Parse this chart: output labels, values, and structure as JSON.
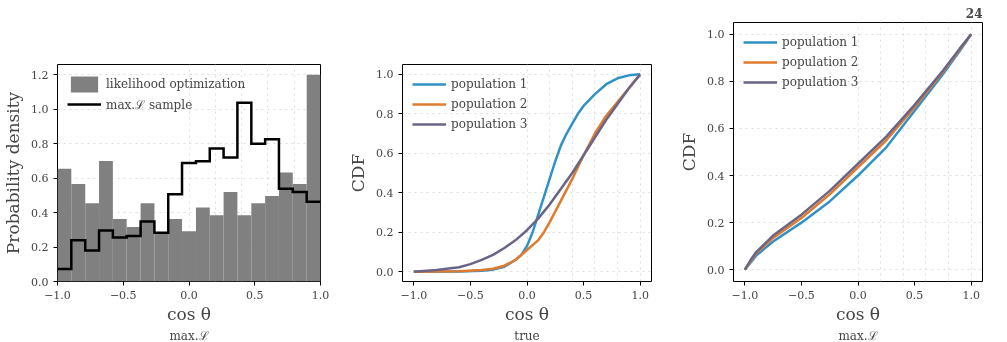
{
  "chart_data": [
    {
      "type": "histogram",
      "xlabel": "cos θ$_{max.ℒ}$",
      "ylabel": "Probability density",
      "bins": [
        -1.0,
        -0.895,
        -0.789,
        -0.684,
        -0.579,
        -0.474,
        -0.368,
        -0.263,
        -0.158,
        -0.053,
        0.053,
        0.158,
        0.263,
        0.368,
        0.474,
        0.579,
        0.684,
        0.789,
        0.895,
        1.0
      ],
      "series": [
        {
          "type": "histogram",
          "name": "likelihood optimization",
          "color": "#808080",
          "values": [
            0.655,
            0.566,
            0.454,
            0.7,
            0.363,
            0.316,
            0.454,
            0.277,
            0.363,
            0.292,
            0.43,
            0.385,
            0.52,
            0.385,
            0.454,
            0.497,
            0.633,
            0.566,
            1.2
          ]
        },
        {
          "type": "step",
          "name": "max.ℒ sample",
          "color": "#000000",
          "x": [
            -1.0,
            -0.895,
            -0.789,
            -0.684,
            -0.579,
            -0.474,
            -0.368,
            -0.263,
            -0.158,
            -0.053,
            0.053,
            0.158,
            0.263,
            0.368,
            0.474,
            0.579,
            0.684,
            0.789,
            0.895,
            1.0
          ],
          "values": [
            0.073,
            0.24,
            0.18,
            0.296,
            0.255,
            0.264,
            0.348,
            0.283,
            0.506,
            0.688,
            0.698,
            0.772,
            0.72,
            1.038,
            0.8,
            0.826,
            0.538,
            0.519,
            0.463,
            0.463
          ]
        }
      ],
      "xlim": [
        -1,
        1
      ],
      "xticks": [
        {
          "value": -1,
          "label": "−1.0"
        },
        {
          "value": -0.5,
          "label": "−0.5"
        },
        {
          "value": 0,
          "label": "0.0"
        },
        {
          "value": 0.5,
          "label": "0.5"
        },
        {
          "value": 1,
          "label": "1.0"
        }
      ],
      "ylim": [
        0,
        1.26
      ],
      "yticks": [
        {
          "value": 0,
          "label": "0.0"
        },
        {
          "value": 0.2,
          "label": "0.2"
        },
        {
          "value": 0.4,
          "label": "0.4"
        },
        {
          "value": 0.6,
          "label": "0.6"
        },
        {
          "value": 0.8,
          "label": "0.8"
        },
        {
          "value": 1,
          "label": "1.0"
        },
        {
          "value": 1.2,
          "label": "1.2"
        }
      ],
      "grid": true,
      "legend": "top left"
    },
    {
      "type": "line",
      "xlabel": "cos θ$_{true}$",
      "ylabel": "CDF",
      "series": [
        {
          "name": "population 1",
          "color": "#3091c9",
          "x": [
            -1,
            -0.6,
            -0.4,
            -0.3,
            -0.2,
            -0.1,
            -0.05,
            0,
            0.05,
            0.1,
            0.15,
            0.2,
            0.25,
            0.3,
            0.35,
            0.4,
            0.45,
            0.5,
            0.6,
            0.7,
            0.8,
            0.9,
            1
          ],
          "values": [
            0,
            0.001,
            0.004,
            0.01,
            0.025,
            0.06,
            0.085,
            0.13,
            0.2,
            0.29,
            0.38,
            0.47,
            0.56,
            0.64,
            0.7,
            0.75,
            0.8,
            0.84,
            0.9,
            0.95,
            0.98,
            0.995,
            1
          ]
        },
        {
          "name": "population 2",
          "color": "#e07b2e",
          "x": [
            -1,
            -0.6,
            -0.4,
            -0.3,
            -0.2,
            -0.1,
            0,
            0.1,
            0.15,
            0.2,
            0.3,
            0.4,
            0.5,
            0.6,
            0.7,
            0.8,
            0.9,
            1
          ],
          "values": [
            0,
            0.002,
            0.008,
            0.015,
            0.03,
            0.06,
            0.11,
            0.16,
            0.2,
            0.25,
            0.36,
            0.47,
            0.59,
            0.7,
            0.79,
            0.86,
            0.93,
            1
          ]
        },
        {
          "name": "population 3",
          "color": "#6a6486",
          "x": [
            -1,
            -0.8,
            -0.6,
            -0.5,
            -0.4,
            -0.3,
            -0.2,
            -0.1,
            0,
            0.1,
            0.2,
            0.3,
            0.4,
            0.5,
            0.6,
            0.7,
            0.8,
            0.9,
            1
          ],
          "values": [
            0,
            0.008,
            0.022,
            0.038,
            0.06,
            0.085,
            0.12,
            0.16,
            0.21,
            0.27,
            0.34,
            0.42,
            0.5,
            0.59,
            0.68,
            0.77,
            0.85,
            0.93,
            1
          ]
        }
      ],
      "xlim": [
        -1.1,
        1.1
      ],
      "xticks": [
        {
          "value": -1,
          "label": "−1.0"
        },
        {
          "value": -0.5,
          "label": "−0.5"
        },
        {
          "value": 0,
          "label": "0.0"
        },
        {
          "value": 0.5,
          "label": "0.5"
        },
        {
          "value": 1,
          "label": "1.0"
        }
      ],
      "ylim": [
        -0.05,
        1.05
      ],
      "yticks": [
        {
          "value": 0,
          "label": "0.0"
        },
        {
          "value": 0.2,
          "label": "0.2"
        },
        {
          "value": 0.4,
          "label": "0.4"
        },
        {
          "value": 0.6,
          "label": "0.6"
        },
        {
          "value": 0.8,
          "label": "0.8"
        },
        {
          "value": 1,
          "label": "1.0"
        }
      ],
      "grid": true,
      "legend": "top left",
      "line_style": "solid",
      "marker": "none"
    },
    {
      "type": "line",
      "xlabel": "cos θ$_{max.ℒ}$",
      "ylabel": "CDF",
      "annotations": [
        "24"
      ],
      "series": [
        {
          "name": "population 1",
          "color": "#3091c9",
          "x": [
            -1,
            -0.95,
            -0.9,
            -0.75,
            -0.5,
            -0.25,
            0,
            0.25,
            0.5,
            0.75,
            0.9,
            1
          ],
          "values": [
            0,
            0.03,
            0.06,
            0.12,
            0.2,
            0.29,
            0.4,
            0.52,
            0.675,
            0.83,
            0.93,
            1
          ]
        },
        {
          "name": "population 2",
          "color": "#e07b2e",
          "x": [
            -1,
            -0.95,
            -0.9,
            -0.75,
            -0.5,
            -0.25,
            0,
            0.25,
            0.5,
            0.75,
            0.9,
            1
          ],
          "values": [
            0,
            0.035,
            0.07,
            0.135,
            0.22,
            0.32,
            0.435,
            0.55,
            0.69,
            0.84,
            0.935,
            1
          ]
        },
        {
          "name": "population 3",
          "color": "#6a6486",
          "x": [
            -1,
            -0.95,
            -0.9,
            -0.75,
            -0.5,
            -0.25,
            0,
            0.25,
            0.5,
            0.75,
            0.9,
            1
          ],
          "values": [
            0,
            0.04,
            0.075,
            0.145,
            0.234,
            0.335,
            0.45,
            0.565,
            0.7,
            0.845,
            0.94,
            1
          ]
        }
      ],
      "xlim": [
        -1.1,
        1.1
      ],
      "xticks": [
        {
          "value": -1,
          "label": "−1.0"
        },
        {
          "value": -0.5,
          "label": "−0.5"
        },
        {
          "value": 0,
          "label": "0.0"
        },
        {
          "value": 0.5,
          "label": "0.5"
        },
        {
          "value": 1,
          "label": "1.0"
        }
      ],
      "ylim": [
        -0.05,
        1.05
      ],
      "yticks": [
        {
          "value": 0,
          "label": "0.0"
        },
        {
          "value": 0.2,
          "label": "0.2"
        },
        {
          "value": 0.4,
          "label": "0.4"
        },
        {
          "value": 0.6,
          "label": "0.6"
        },
        {
          "value": 0.8,
          "label": "0.8"
        },
        {
          "value": 1,
          "label": "1.0"
        }
      ],
      "grid": true,
      "legend": "top left",
      "line_style": "solid",
      "marker": "none"
    }
  ]
}
